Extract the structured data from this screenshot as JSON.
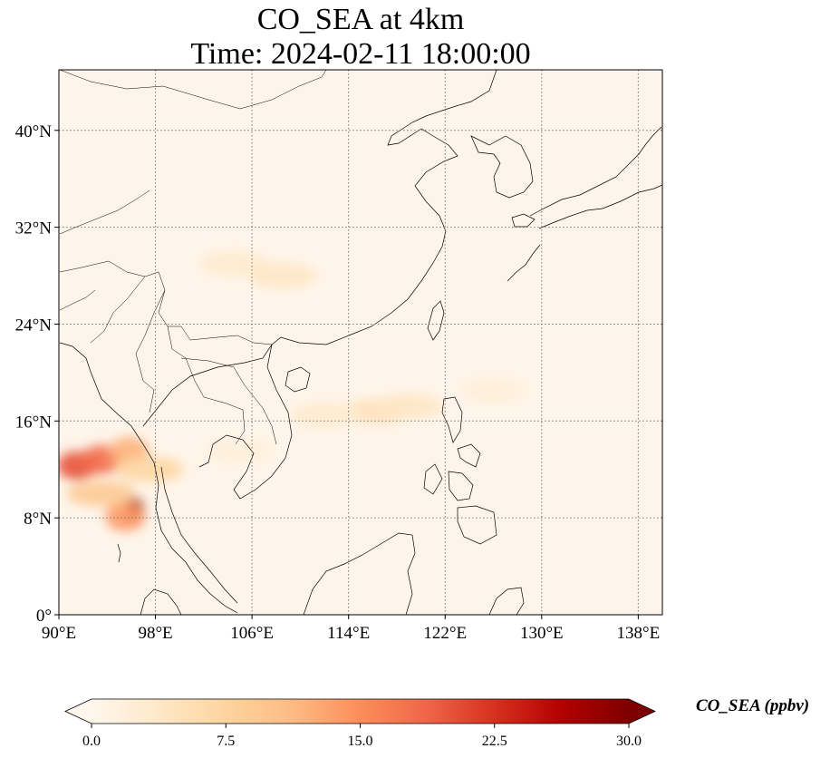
{
  "title": {
    "line1": "CO_SEA at 4km",
    "line2": "Time: 2024-02-11 18:00:00"
  },
  "map": {
    "lon_range": [
      90,
      140
    ],
    "lat_range": [
      0,
      45
    ],
    "lon_ticks": [
      {
        "value": 90,
        "label": "90°E"
      },
      {
        "value": 98,
        "label": "98°E"
      },
      {
        "value": 106,
        "label": "106°E"
      },
      {
        "value": 114,
        "label": "114°E"
      },
      {
        "value": 122,
        "label": "122°E"
      },
      {
        "value": 130,
        "label": "130°E"
      },
      {
        "value": 138,
        "label": "138°E"
      }
    ],
    "lat_ticks": [
      {
        "value": 0,
        "label": "0°"
      },
      {
        "value": 8,
        "label": "8°N"
      },
      {
        "value": 16,
        "label": "16°N"
      },
      {
        "value": 24,
        "label": "24°N"
      },
      {
        "value": 32,
        "label": "32°N"
      },
      {
        "value": 40,
        "label": "40°N"
      }
    ],
    "gridlines": true,
    "gridline_style": "dotted",
    "background_color": "#fef5ea"
  },
  "colorbar": {
    "label": "CO_SEA (ppbv)",
    "colormap": "OrRd",
    "range": [
      0,
      30
    ],
    "extend": "both",
    "ticks": [
      {
        "value": 0,
        "label": "0.0"
      },
      {
        "value": 7.5,
        "label": "7.5"
      },
      {
        "value": 15,
        "label": "15.0"
      },
      {
        "value": 22.5,
        "label": "22.5"
      },
      {
        "value": 30,
        "label": "30.0"
      }
    ],
    "stops": [
      "#fff7ec",
      "#fee8c8",
      "#fdd49e",
      "#fdbb84",
      "#fc8d59",
      "#ef6548",
      "#d7301f",
      "#b30000",
      "#7f0000"
    ]
  },
  "plumes": [
    {
      "lon": 91.5,
      "lat": 12.3,
      "value": 20
    },
    {
      "lon": 93.5,
      "lat": 12.8,
      "value": 18
    },
    {
      "lon": 95.8,
      "lat": 13.5,
      "value": 12
    },
    {
      "lon": 96.3,
      "lat": 8.7,
      "value": 29
    },
    {
      "lon": 95.5,
      "lat": 8.1,
      "value": 14
    },
    {
      "lon": 93.5,
      "lat": 10.0,
      "value": 9
    },
    {
      "lon": 97.5,
      "lat": 12.0,
      "value": 7
    },
    {
      "lon": 116.5,
      "lat": 16.8,
      "value": 5
    },
    {
      "lon": 112.0,
      "lat": 16.5,
      "value": 3
    },
    {
      "lon": 119.0,
      "lat": 17.2,
      "value": 4
    },
    {
      "lon": 104.5,
      "lat": 29.0,
      "value": 3
    },
    {
      "lon": 108.5,
      "lat": 28.0,
      "value": 4
    },
    {
      "lon": 105.0,
      "lat": 13.5,
      "value": 2
    },
    {
      "lon": 126.0,
      "lat": 18.5,
      "value": 2
    }
  ]
}
